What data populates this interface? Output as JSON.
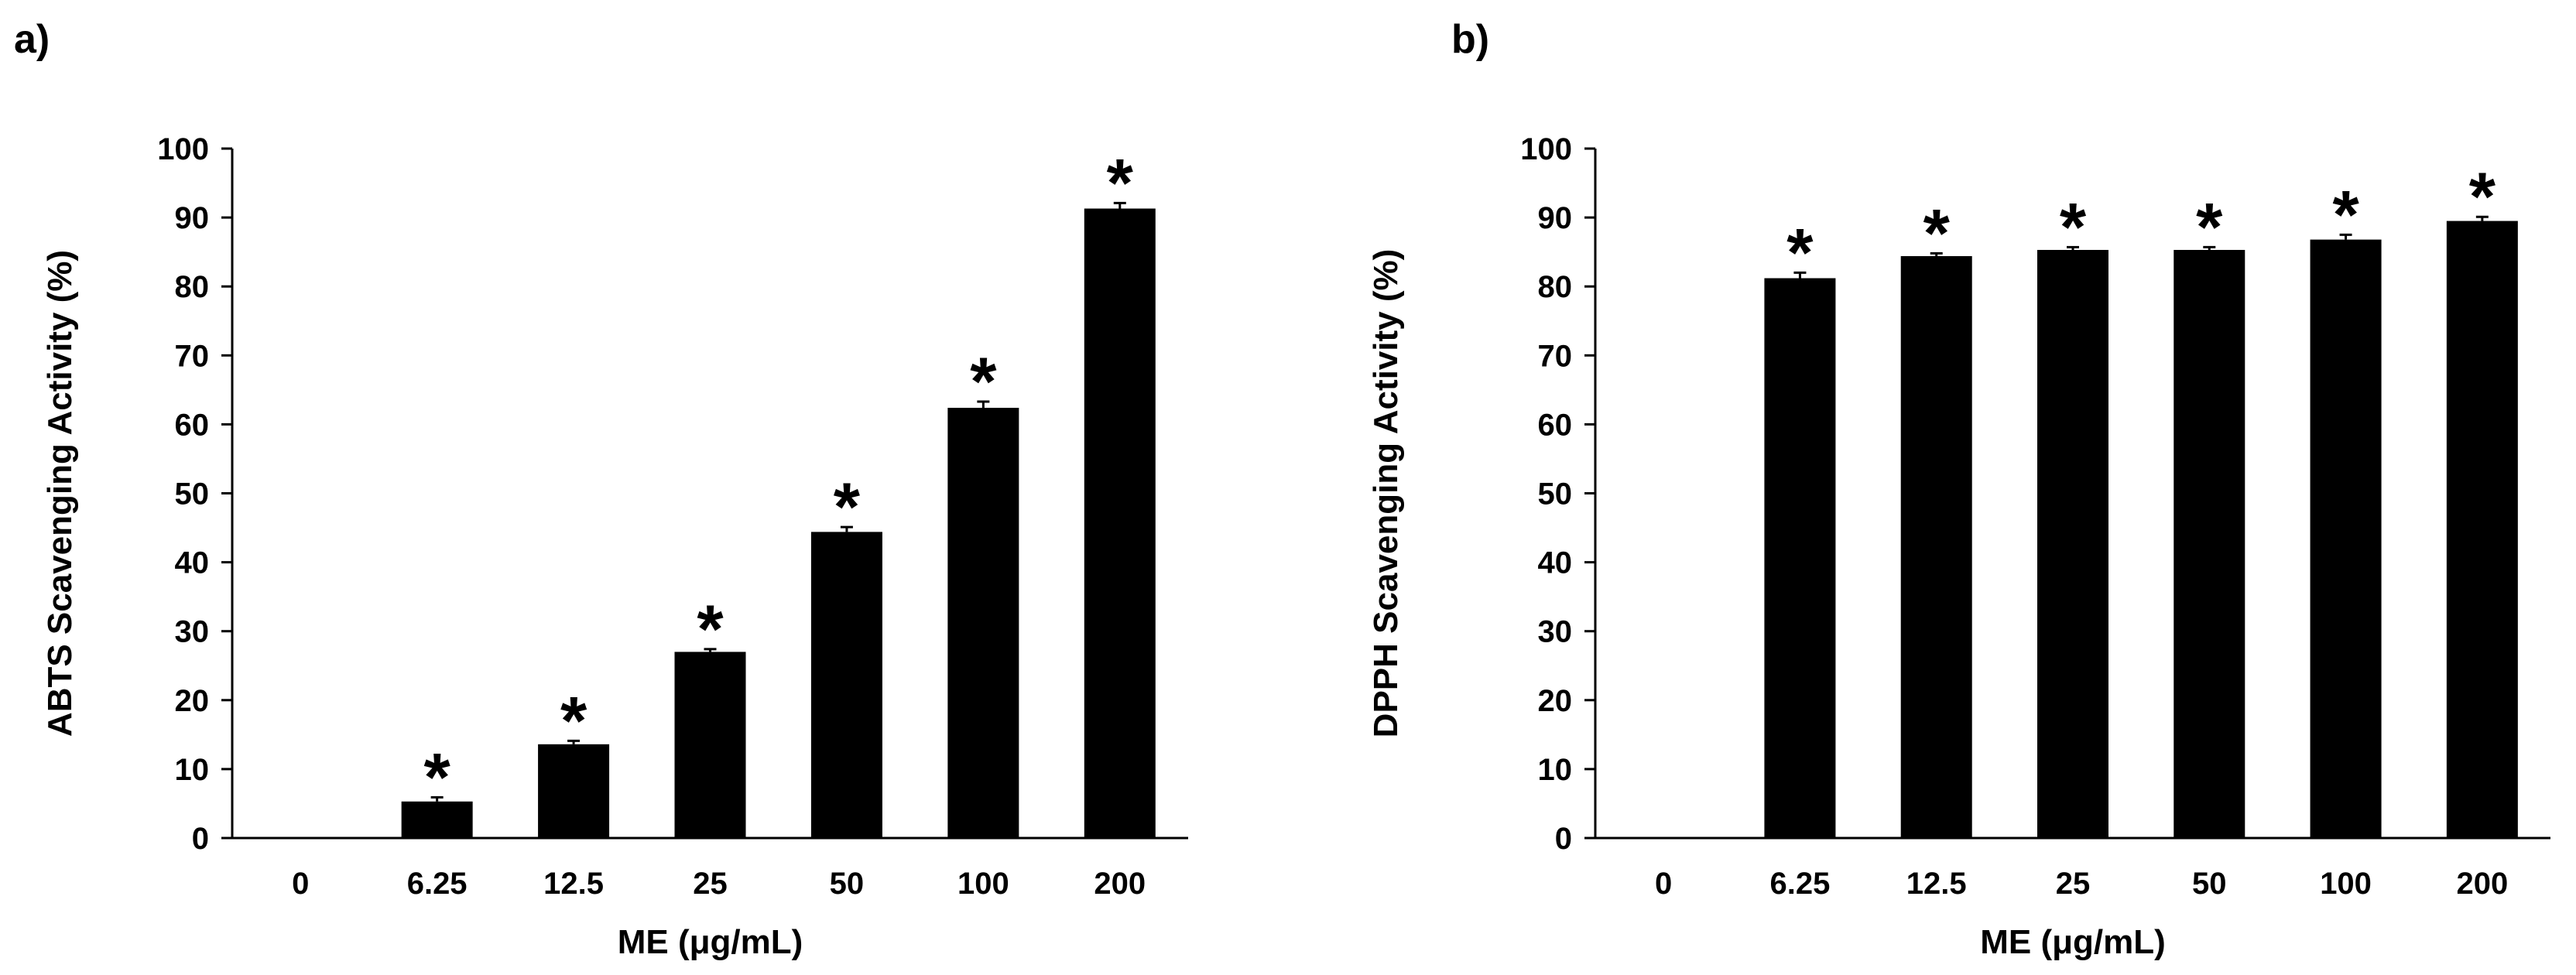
{
  "chart_data": [
    {
      "panel": "a)",
      "type": "bar",
      "categories": [
        "0",
        "6.25",
        "12.5",
        "25",
        "50",
        "100",
        "200"
      ],
      "values": [
        0,
        5.3,
        13.6,
        27.0,
        44.4,
        62.4,
        91.3
      ],
      "errors": [
        0,
        0.6,
        0.5,
        0.4,
        0.7,
        0.9,
        0.8
      ],
      "markers": [
        "",
        "*",
        "*",
        "*",
        "*",
        "*",
        "*"
      ],
      "xlabel": "ME (μg/mL)",
      "ylabel": "ABTS Scavenging Activity (%)",
      "ylim": [
        0,
        100
      ],
      "yticks": [
        0,
        10,
        20,
        30,
        40,
        50,
        60,
        70,
        80,
        90,
        100
      ],
      "grid": false,
      "bar_color": "#000000"
    },
    {
      "panel": "b)",
      "type": "bar",
      "categories": [
        "0",
        "6.25",
        "12.5",
        "25",
        "50",
        "100",
        "200"
      ],
      "values": [
        0,
        81.2,
        84.4,
        85.3,
        85.3,
        86.8,
        89.5
      ],
      "errors": [
        0,
        0.8,
        0.4,
        0.4,
        0.4,
        0.7,
        0.6
      ],
      "markers": [
        "",
        "*",
        "*",
        "*",
        "*",
        "*",
        "*"
      ],
      "xlabel": "ME (μg/mL)",
      "ylabel": "DPPH Scavenging Activity (%)",
      "ylim": [
        0,
        100
      ],
      "yticks": [
        0,
        10,
        20,
        30,
        40,
        50,
        60,
        70,
        80,
        90,
        100
      ],
      "grid": false,
      "bar_color": "#000000"
    }
  ]
}
